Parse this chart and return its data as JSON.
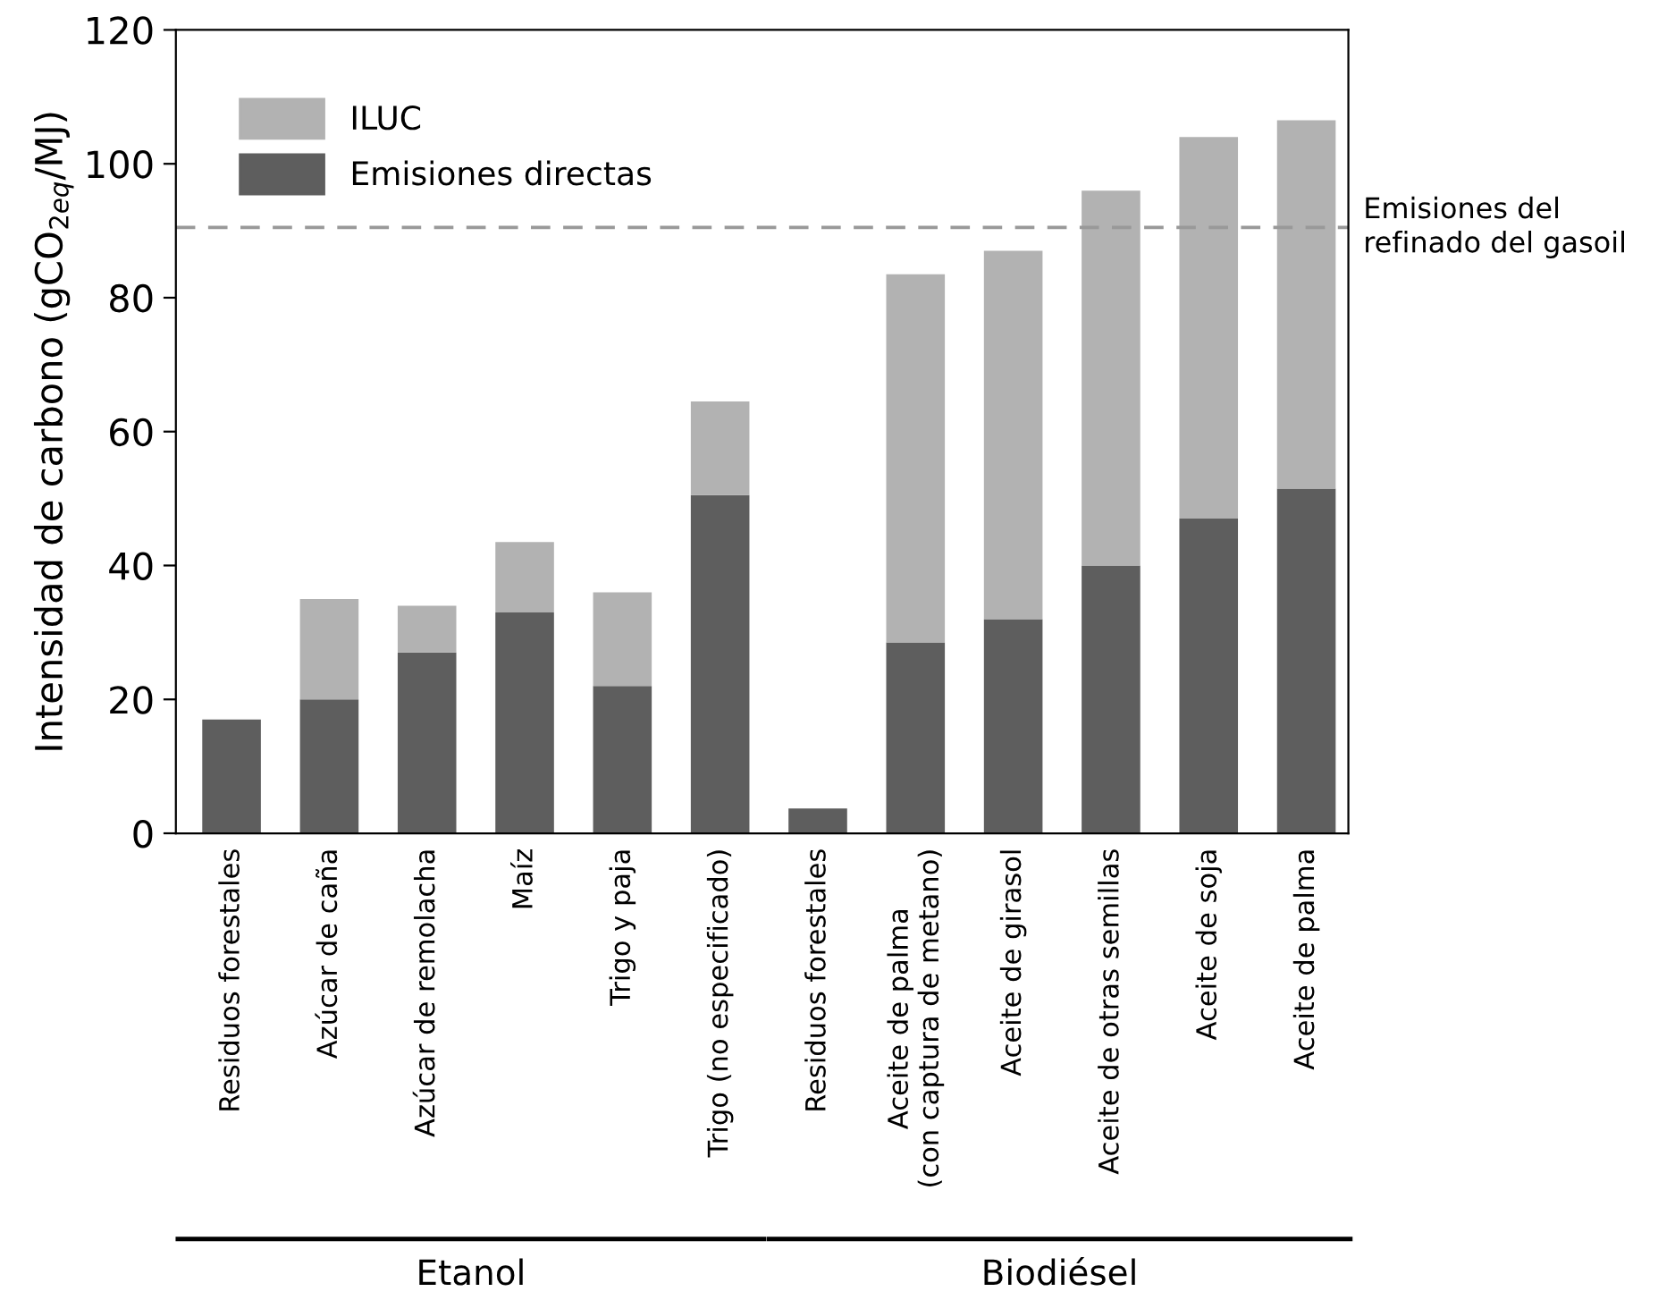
{
  "chart_data": {
    "type": "bar",
    "stacked": true,
    "categories": [
      "Residuos forestales",
      "Azúcar de caña",
      "Azúcar de remolacha",
      "Maíz",
      "Trigo y paja",
      "Trigo (no especificado)",
      "Residuos forestales",
      "Aceite de palma\n(con captura de metano)",
      "Aceite de girasol",
      "Aceite de otras semillas",
      "Aceite de soja",
      "Aceite de palma"
    ],
    "series": [
      {
        "name": "Emisiones directas",
        "color": "#5e5e5e",
        "values": [
          17,
          20,
          27,
          33,
          22,
          50.5,
          3.7,
          28.5,
          32,
          40,
          47,
          51.5
        ]
      },
      {
        "name": "ILUC",
        "color": "#b2b2b2",
        "values": [
          0,
          15,
          7,
          10.5,
          14,
          14,
          0,
          55,
          55,
          56,
          57,
          55
        ]
      }
    ],
    "ylabel": "Intensidad de carbono (gCO$_{2eq}$/MJ)",
    "ylim": [
      0,
      120
    ],
    "yticks": [
      0,
      20,
      40,
      60,
      80,
      100,
      120
    ],
    "ref_lines": [
      {
        "axis": "y",
        "value": 90.5,
        "label": "Emisiones del\nrefinado del gasoil",
        "color": "#999999",
        "line_style": "dashed"
      }
    ],
    "annotations": [
      "Etanol",
      "Biodiésel"
    ],
    "legend": "top left",
    "grid": false
  }
}
